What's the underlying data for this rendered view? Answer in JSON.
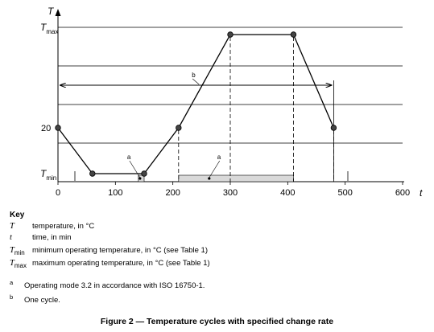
{
  "chart_data": {
    "type": "line",
    "xlabel": "t",
    "ylabel": "T",
    "xlim": [
      0,
      600
    ],
    "x_ticks": [
      0,
      100,
      200,
      300,
      400,
      500,
      600
    ],
    "y_levels": [
      "T_min",
      "20",
      "T_max"
    ],
    "y_tick_labels": [
      {
        "main": "T",
        "sub": "max",
        "level": "T_max"
      },
      {
        "main": "20",
        "sub": "",
        "level": "20"
      },
      {
        "main": "T",
        "sub": "min",
        "level": "T_min"
      }
    ],
    "grid": true,
    "series": [
      {
        "x": [
          0,
          60,
          150,
          210,
          300,
          410,
          480
        ],
        "y": [
          "20",
          "T_min",
          "T_min",
          "20",
          "T_max",
          "T_max",
          "20"
        ]
      }
    ],
    "annotations": [
      {
        "label": "a",
        "x_start": 140,
        "x_end": 150
      },
      {
        "label": "a",
        "x_start": 210,
        "x_end": 410
      },
      {
        "label": "b",
        "x_start": 0,
        "x_end": 480
      }
    ]
  },
  "key": {
    "title": "Key",
    "rows": [
      {
        "symbol": "T",
        "sub": "",
        "desc": "temperature, in °C"
      },
      {
        "symbol": "t",
        "sub": "",
        "desc": "time, in min"
      },
      {
        "symbol": "T",
        "sub": "min",
        "desc": "minimum operating temperature, in °C (see Table 1)"
      },
      {
        "symbol": "T",
        "sub": "max",
        "desc": "maximum operating temperature, in °C (see Table 1)"
      }
    ]
  },
  "footnotes": [
    {
      "symbol": "a",
      "text": "Operating mode 3.2 in accordance with ISO 16750-1."
    },
    {
      "symbol": "b",
      "text": "One cycle."
    }
  ],
  "caption": "Figure 2 — Temperature cycles with specified change rate"
}
